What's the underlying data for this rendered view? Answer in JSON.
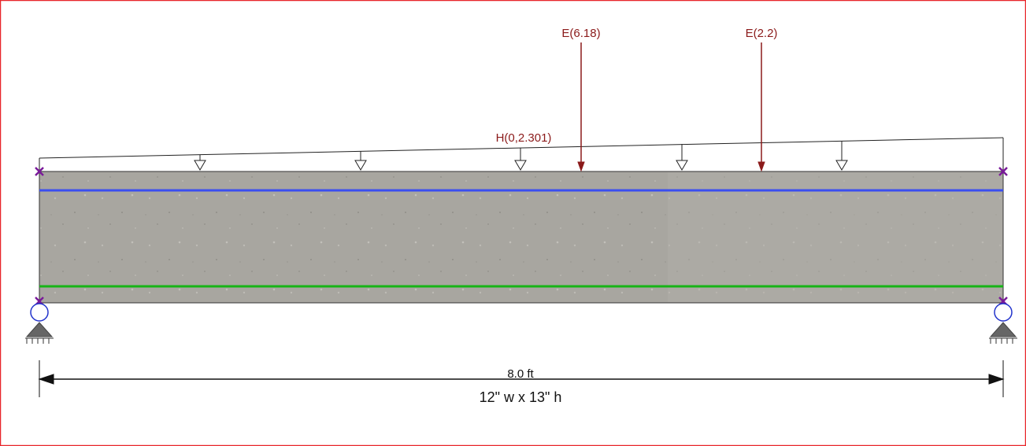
{
  "loads": {
    "point": [
      {
        "label": "E(6.18)"
      },
      {
        "label": "E(2.2)"
      }
    ],
    "distributed": {
      "label": "H(0,2.301)"
    }
  },
  "dimension": {
    "label": "8.0 ft"
  },
  "section": {
    "label": "12\" w x 13\" h"
  }
}
